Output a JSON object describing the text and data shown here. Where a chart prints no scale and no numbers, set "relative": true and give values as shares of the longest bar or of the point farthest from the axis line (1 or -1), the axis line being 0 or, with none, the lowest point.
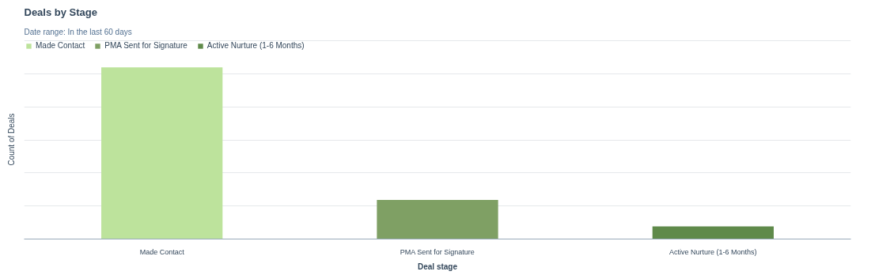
{
  "chart_data": {
    "type": "bar",
    "title": "Deals by Stage",
    "subtitle": "Date range: In the last 60 days",
    "xlabel": "Deal stage",
    "ylabel": "Count of Deals",
    "categories": [
      "Made Contact",
      "PMA Sent for Signature",
      "Active Nurture (1-6 Months)"
    ],
    "series": [
      {
        "name": "Made Contact",
        "color": "#bde39c",
        "values": [
          1,
          null,
          null
        ]
      },
      {
        "name": "PMA Sent for Signature",
        "color": "#7fa064",
        "values": [
          null,
          0.228,
          null
        ]
      },
      {
        "name": "Active Nurture (1-6 Months)",
        "color": "#5f8a4a",
        "values": [
          null,
          null,
          0.074
        ]
      }
    ],
    "relative": true,
    "grid": "y",
    "legend": "top left"
  }
}
